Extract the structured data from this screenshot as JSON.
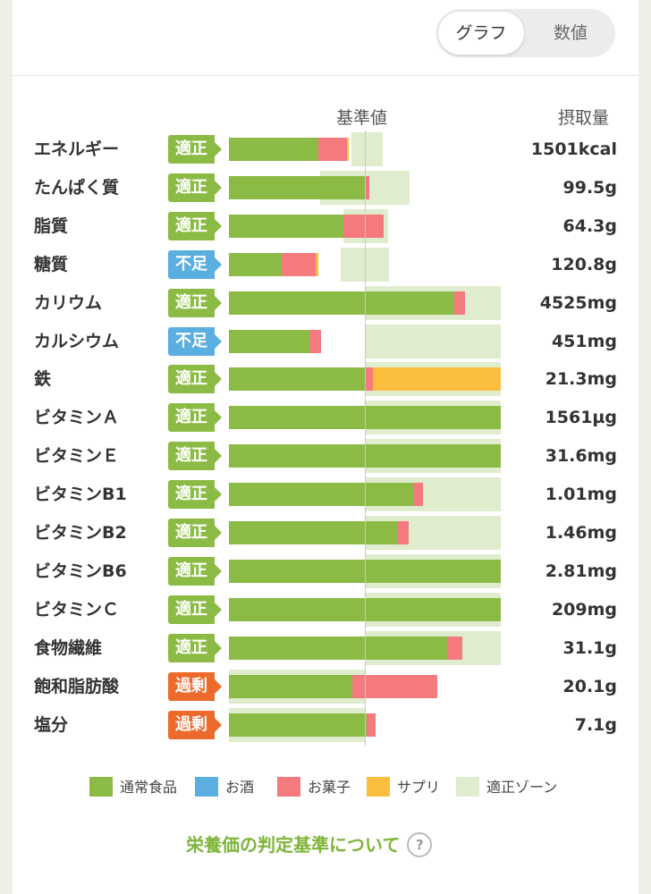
{
  "toggle": {
    "graph_label": "グラフ",
    "value_label": "数値",
    "selected": "グラフ"
  },
  "header": {
    "reference_label": "基準値",
    "amount_label": "摂取量"
  },
  "colors": {
    "normal_food": "#8cbb45",
    "alcohol": "#5aaee0",
    "snacks": "#f47a7e",
    "supplement": "#fbbd3e",
    "proper_zone": "#dfeccd"
  },
  "status_colors": {
    "適正": "#8cbb45",
    "不足": "#5aaee0",
    "過剰": "#ec6a2c"
  },
  "nutrients": [
    {
      "name": "エネルギー",
      "status": "適正",
      "amount": "1501kcal",
      "zone_percent": [
        90,
        113
      ],
      "food_percent": [
        0,
        66
      ],
      "alcohol_percent": [
        0,
        0
      ],
      "snacks_percent": [
        66,
        87
      ],
      "supplement_percent": [
        87,
        88
      ]
    },
    {
      "name": "たんぱく質",
      "status": "適正",
      "amount": "99.5g",
      "zone_percent": [
        67,
        133
      ],
      "food_percent": [
        0,
        100
      ],
      "alcohol_percent": [
        0,
        0
      ],
      "snacks_percent": [
        100,
        103
      ],
      "supplement_percent": [
        0,
        0
      ]
    },
    {
      "name": "脂質",
      "status": "適正",
      "amount": "64.3g",
      "zone_percent": [
        84,
        117
      ],
      "food_percent": [
        0,
        84
      ],
      "alcohol_percent": [
        0,
        0
      ],
      "snacks_percent": [
        84,
        114
      ],
      "supplement_percent": [
        0,
        0
      ]
    },
    {
      "name": "糖質",
      "status": "不足",
      "amount": "120.8g",
      "zone_percent": [
        82,
        118
      ],
      "food_percent": [
        0,
        39
      ],
      "alcohol_percent": [
        0,
        0
      ],
      "snacks_percent": [
        39,
        64
      ],
      "supplement_percent": [
        64,
        66
      ]
    },
    {
      "name": "カリウム",
      "status": "適正",
      "amount": "4525mg",
      "zone_percent": [
        100,
        200
      ],
      "food_percent": [
        0,
        166
      ],
      "alcohol_percent": [
        0,
        0
      ],
      "snacks_percent": [
        166,
        174
      ],
      "supplement_percent": [
        0,
        0
      ]
    },
    {
      "name": "カルシウム",
      "status": "不足",
      "amount": "451mg",
      "zone_percent": [
        100,
        200
      ],
      "food_percent": [
        0,
        59
      ],
      "alcohol_percent": [
        0,
        0
      ],
      "snacks_percent": [
        59,
        68
      ],
      "supplement_percent": [
        0,
        0
      ]
    },
    {
      "name": "鉄",
      "status": "適正",
      "amount": "21.3mg",
      "zone_percent": [
        100,
        200
      ],
      "food_percent": [
        0,
        100
      ],
      "alcohol_percent": [
        0,
        0
      ],
      "snacks_percent": [
        100,
        106
      ],
      "supplement_percent": [
        106,
        200
      ]
    },
    {
      "name": "ビタミンＡ",
      "status": "適正",
      "amount": "1561µg",
      "zone_percent": [
        100,
        200
      ],
      "food_percent": [
        0,
        200
      ],
      "alcohol_percent": [
        0,
        0
      ],
      "snacks_percent": [
        0,
        0
      ],
      "supplement_percent": [
        0,
        0
      ]
    },
    {
      "name": "ビタミンＥ",
      "status": "適正",
      "amount": "31.6mg",
      "zone_percent": [
        100,
        200
      ],
      "food_percent": [
        0,
        200
      ],
      "alcohol_percent": [
        0,
        0
      ],
      "snacks_percent": [
        0,
        0
      ],
      "supplement_percent": [
        0,
        0
      ]
    },
    {
      "name": "ビタミンB1",
      "status": "適正",
      "amount": "1.01mg",
      "zone_percent": [
        100,
        200
      ],
      "food_percent": [
        0,
        136
      ],
      "alcohol_percent": [
        0,
        0
      ],
      "snacks_percent": [
        136,
        143
      ],
      "supplement_percent": [
        0,
        0
      ]
    },
    {
      "name": "ビタミンB2",
      "status": "適正",
      "amount": "1.46mg",
      "zone_percent": [
        100,
        200
      ],
      "food_percent": [
        0,
        124
      ],
      "alcohol_percent": [
        0,
        0
      ],
      "snacks_percent": [
        124,
        132
      ],
      "supplement_percent": [
        0,
        0
      ]
    },
    {
      "name": "ビタミンB6",
      "status": "適正",
      "amount": "2.81mg",
      "zone_percent": [
        100,
        200
      ],
      "food_percent": [
        0,
        200
      ],
      "alcohol_percent": [
        0,
        0
      ],
      "snacks_percent": [
        0,
        0
      ],
      "supplement_percent": [
        0,
        0
      ]
    },
    {
      "name": "ビタミンＣ",
      "status": "適正",
      "amount": "209mg",
      "zone_percent": [
        100,
        200
      ],
      "food_percent": [
        0,
        200
      ],
      "alcohol_percent": [
        0,
        0
      ],
      "snacks_percent": [
        0,
        0
      ],
      "supplement_percent": [
        0,
        0
      ]
    },
    {
      "name": "食物繊維",
      "status": "適正",
      "amount": "31.1g",
      "zone_percent": [
        100,
        200
      ],
      "food_percent": [
        0,
        161
      ],
      "alcohol_percent": [
        0,
        0
      ],
      "snacks_percent": [
        161,
        172
      ],
      "supplement_percent": [
        0,
        0
      ]
    },
    {
      "name": "飽和脂肪酸",
      "status": "過剰",
      "amount": "20.1g",
      "zone_percent": [
        0,
        100
      ],
      "food_percent": [
        0,
        91
      ],
      "alcohol_percent": [
        0,
        0
      ],
      "snacks_percent": [
        91,
        153
      ],
      "supplement_percent": [
        0,
        0
      ]
    },
    {
      "name": "塩分",
      "status": "過剰",
      "amount": "7.1g",
      "zone_percent": [
        0,
        100
      ],
      "food_percent": [
        0,
        101
      ],
      "alcohol_percent": [
        0,
        0
      ],
      "snacks_percent": [
        101,
        108
      ],
      "supplement_percent": [
        0,
        0
      ]
    }
  ],
  "legend": [
    {
      "label": "通常食品",
      "color_key": "normal_food"
    },
    {
      "label": "お酒",
      "color_key": "alcohol"
    },
    {
      "label": "お菓子",
      "color_key": "snacks"
    },
    {
      "label": "サプリ",
      "color_key": "supplement"
    },
    {
      "label": "適正ゾーン",
      "color_key": "proper_zone"
    }
  ],
  "footer": {
    "link_label": "栄養価の判定基準について",
    "help_icon": "?"
  }
}
